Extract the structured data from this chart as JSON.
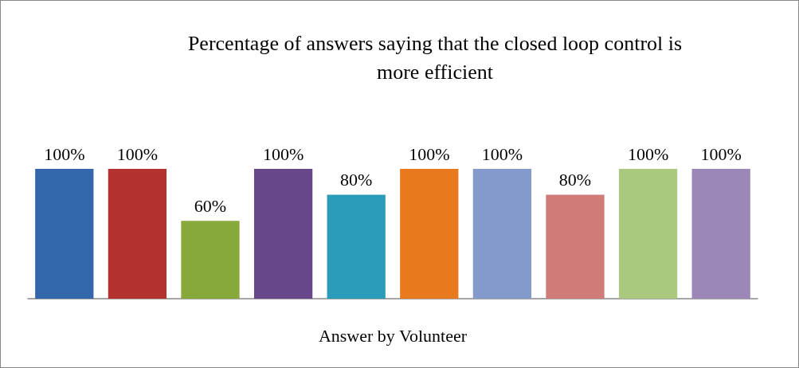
{
  "chart_data": {
    "type": "bar",
    "title": "Percentage of answers saying that the closed loop control is\nmore efficient",
    "xlabel": "Answer by Volunteer",
    "categories": [
      null,
      null,
      null,
      null,
      null,
      null,
      null,
      null,
      null,
      null
    ],
    "values": [
      100,
      100,
      60,
      100,
      80,
      100,
      100,
      80,
      100,
      100
    ],
    "value_labels": [
      "100%",
      "100%",
      "60%",
      "100%",
      "80%",
      "100%",
      "100%",
      "80%",
      "100%",
      "100%"
    ],
    "colors": [
      "#3366aa",
      "#b3322f",
      "#86a93a",
      "#67468a",
      "#2a9bb8",
      "#e8791f",
      "#8499cc",
      "#d07b78",
      "#aac97f",
      "#9b88b8"
    ],
    "grid": false
  }
}
